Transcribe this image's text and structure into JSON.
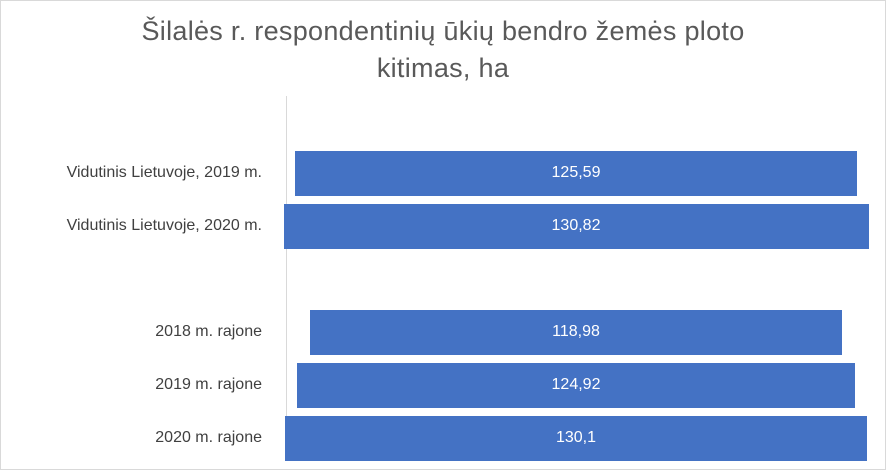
{
  "chart_data": {
    "type": "bar",
    "orientation": "horizontal",
    "title": [
      "Šilalės r. respondentinių  ūkių bendro žemės ploto",
      "kitimas, ha"
    ],
    "categories": [
      "Vidutinis Lietuvoje, 2019 m.",
      "Vidutinis Lietuvoje, 2020 m.",
      "",
      "2018 m. rajone",
      "2019 m. rajone",
      "2020 m. rajone"
    ],
    "values": [
      125.59,
      130.82,
      null,
      118.98,
      124.92,
      130.1
    ],
    "data_labels": [
      "125,59",
      "130,82",
      "",
      "118,98",
      "124,92",
      "130,1"
    ],
    "bar_alignment": "centered",
    "gridlines": false,
    "legend": "none",
    "colors": {
      "bar": "#4472c4",
      "text": "#404040",
      "title": "#595959",
      "bar_label": "#ffffff"
    }
  }
}
